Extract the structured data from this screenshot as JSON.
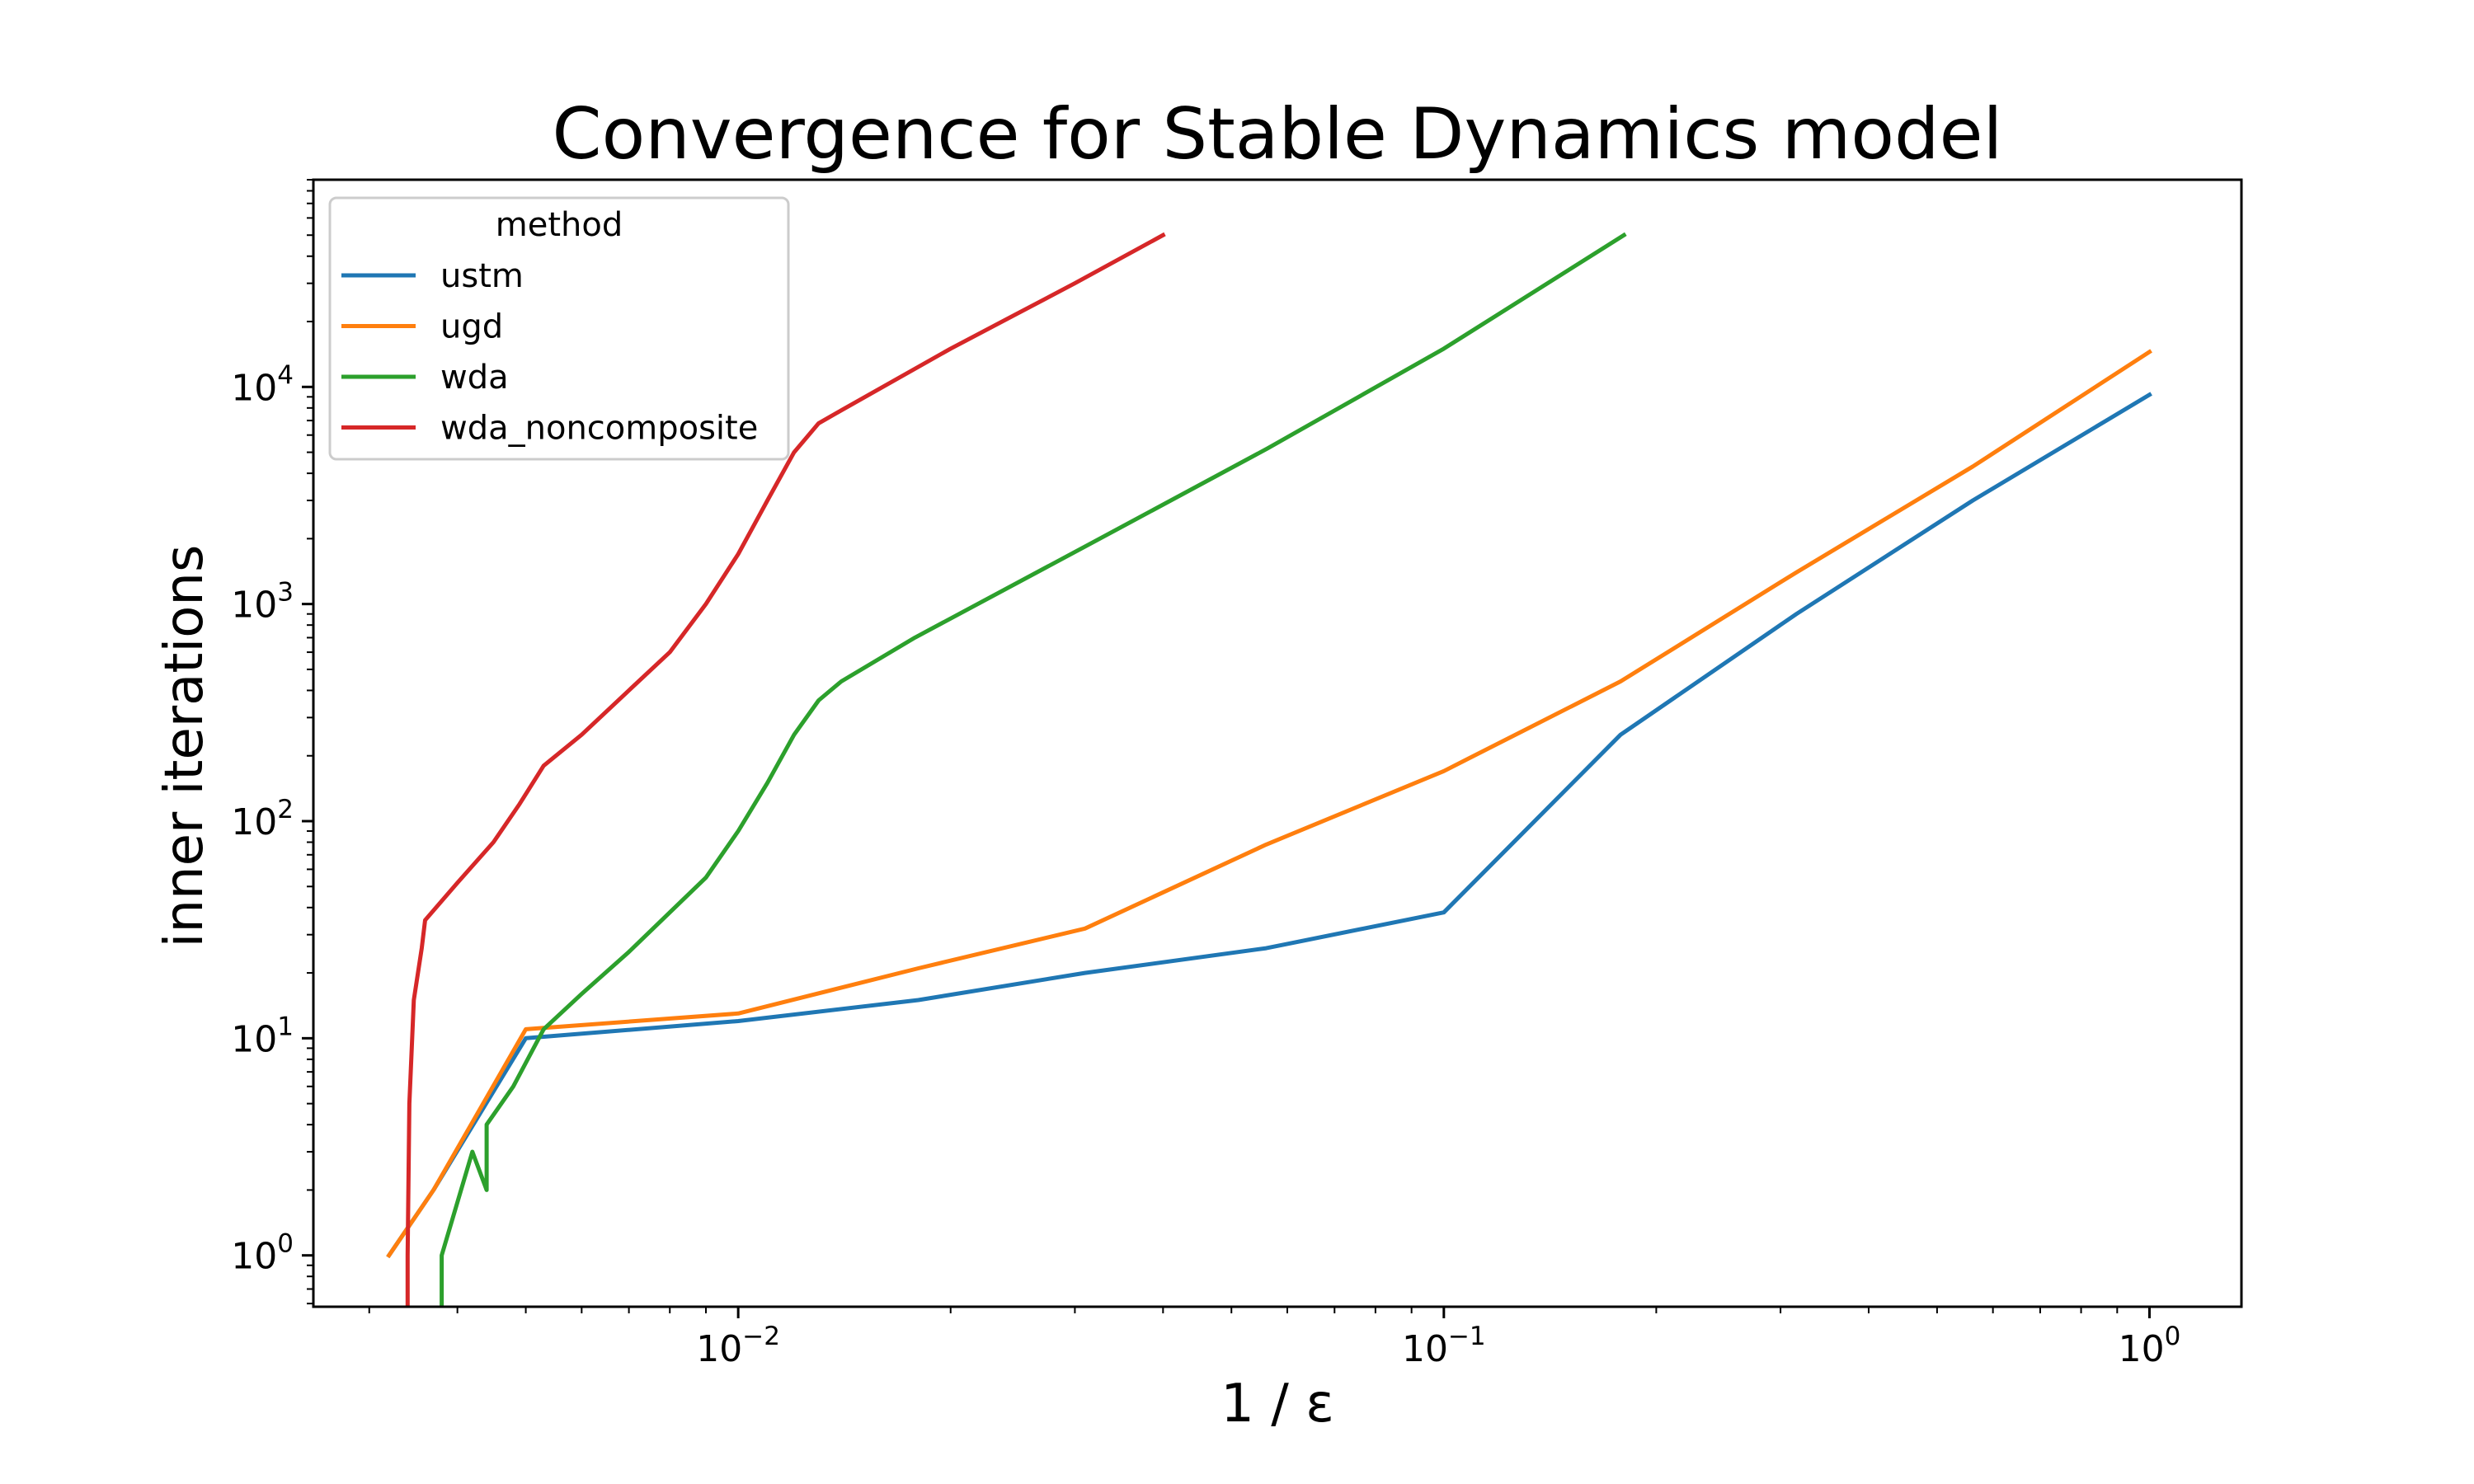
{
  "chart_data": {
    "type": "line",
    "title": "Convergence for Stable Dynamics model",
    "xlabel": "1 / ε",
    "ylabel": "inner iterations",
    "xscale": "log",
    "yscale": "log",
    "xlim": [
      0.0025,
      1.35
    ],
    "ylim": [
      0.58,
      90000
    ],
    "grid": false,
    "legend": {
      "title": "method",
      "position": "top-left"
    },
    "xticks": [
      {
        "value": 0.01,
        "base": "10",
        "exp": "−2"
      },
      {
        "value": 0.1,
        "base": "10",
        "exp": "−1"
      },
      {
        "value": 1,
        "base": "10",
        "exp": "0"
      }
    ],
    "yticks": [
      {
        "value": 1,
        "base": "10",
        "exp": "0"
      },
      {
        "value": 10,
        "base": "10",
        "exp": "1"
      },
      {
        "value": 100,
        "base": "10",
        "exp": "2"
      },
      {
        "value": 1000,
        "base": "10",
        "exp": "3"
      },
      {
        "value": 10000,
        "base": "10",
        "exp": "4"
      }
    ],
    "series": [
      {
        "name": "ustm",
        "color": "#1f77b4",
        "points": [
          [
            0.0032,
            1
          ],
          [
            0.0037,
            2
          ],
          [
            0.005,
            10
          ],
          [
            0.01,
            12
          ],
          [
            0.018,
            15
          ],
          [
            0.031,
            20
          ],
          [
            0.056,
            26
          ],
          [
            0.1,
            38
          ],
          [
            0.178,
            250
          ],
          [
            0.316,
            900
          ],
          [
            0.562,
            3000
          ],
          [
            1.0,
            9200
          ]
        ]
      },
      {
        "name": "ugd",
        "color": "#ff7f0e",
        "points": [
          [
            0.0032,
            1
          ],
          [
            0.0037,
            2
          ],
          [
            0.005,
            11
          ],
          [
            0.01,
            13
          ],
          [
            0.018,
            21
          ],
          [
            0.031,
            32
          ],
          [
            0.056,
            78
          ],
          [
            0.1,
            170
          ],
          [
            0.178,
            440
          ],
          [
            0.316,
            1400
          ],
          [
            0.562,
            4300
          ],
          [
            1.0,
            14500
          ]
        ]
      },
      {
        "name": "wda",
        "color": "#2ca02c",
        "points": [
          [
            0.0038,
            0.45
          ],
          [
            0.0038,
            1
          ],
          [
            0.0042,
            3
          ],
          [
            0.0044,
            2
          ],
          [
            0.0044,
            4
          ],
          [
            0.0048,
            6
          ],
          [
            0.0053,
            11
          ],
          [
            0.006,
            16
          ],
          [
            0.007,
            25
          ],
          [
            0.008,
            38
          ],
          [
            0.009,
            55
          ],
          [
            0.01,
            90
          ],
          [
            0.011,
            150
          ],
          [
            0.012,
            250
          ],
          [
            0.013,
            360
          ],
          [
            0.014,
            440
          ],
          [
            0.0178,
            700
          ],
          [
            0.0316,
            1900
          ],
          [
            0.0562,
            5200
          ],
          [
            0.1,
            15000
          ],
          [
            0.18,
            50000
          ]
        ]
      },
      {
        "name": "wda_noncomposite",
        "color": "#d62728",
        "points": [
          [
            0.0034,
            0.45
          ],
          [
            0.0034,
            1
          ],
          [
            0.00342,
            5
          ],
          [
            0.00347,
            15
          ],
          [
            0.00356,
            26
          ],
          [
            0.0036,
            35
          ],
          [
            0.004,
            52
          ],
          [
            0.0045,
            80
          ],
          [
            0.0049,
            120
          ],
          [
            0.0053,
            180
          ],
          [
            0.006,
            250
          ],
          [
            0.007,
            400
          ],
          [
            0.008,
            600
          ],
          [
            0.009,
            1000
          ],
          [
            0.01,
            1700
          ],
          [
            0.011,
            3000
          ],
          [
            0.012,
            5000
          ],
          [
            0.013,
            6800
          ],
          [
            0.014,
            7800
          ],
          [
            0.02,
            15000
          ],
          [
            0.03,
            30000
          ],
          [
            0.04,
            50000
          ]
        ]
      }
    ]
  }
}
